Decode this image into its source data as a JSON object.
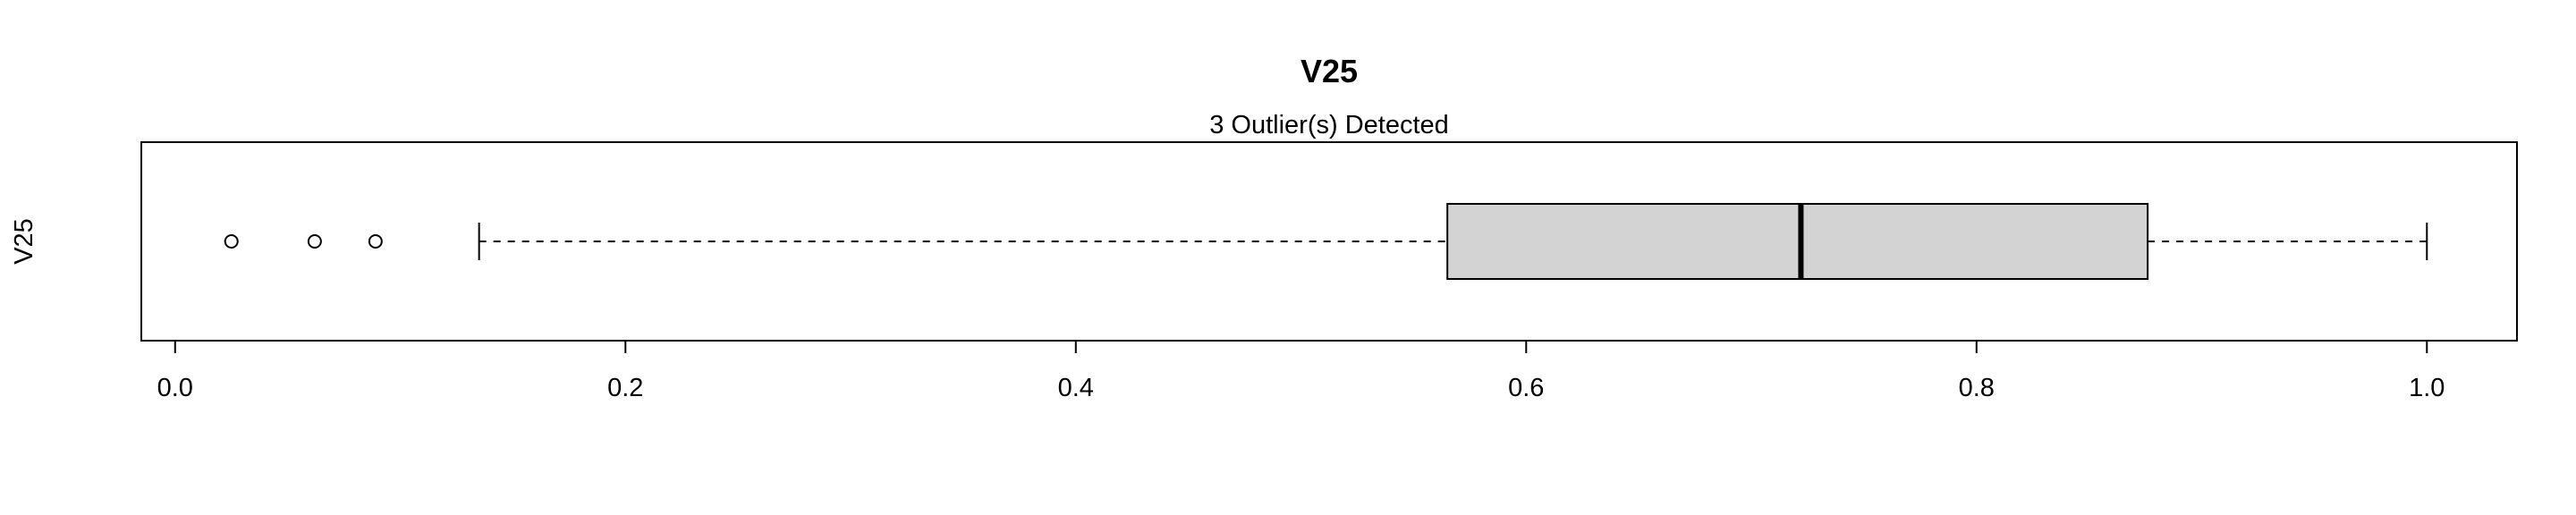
{
  "chart_data": {
    "type": "boxplot",
    "orientation": "horizontal",
    "title": "V25",
    "subtitle": "3 Outlier(s) Detected",
    "ylabel": "V25",
    "xlim": [
      -0.015,
      1.04
    ],
    "xticks": [
      0.0,
      0.2,
      0.4,
      0.6,
      0.8,
      1.0
    ],
    "xtick_labels": [
      "0.0",
      "0.2",
      "0.4",
      "0.6",
      "0.8",
      "1.0"
    ],
    "whisker_low": 0.135,
    "q1": 0.565,
    "median": 0.722,
    "q3": 0.876,
    "whisker_high": 1.0,
    "outliers": [
      0.025,
      0.062,
      0.089
    ],
    "colors": {
      "box_fill": "#d3d3d3",
      "stroke": "#000000",
      "background": "#ffffff"
    }
  }
}
